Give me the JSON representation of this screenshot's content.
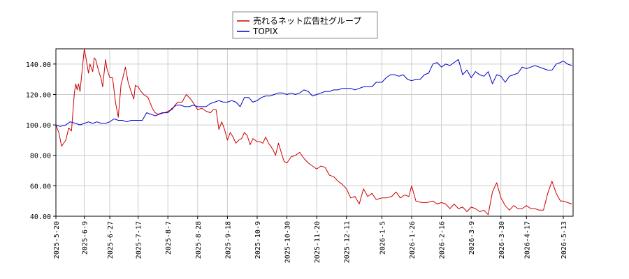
{
  "chart_data": {
    "type": "line",
    "legend_placement": "top-center",
    "grid": true,
    "ylim": [
      40,
      150
    ],
    "yticks": [
      "40.00",
      "60.00",
      "80.00",
      "100.00",
      "120.00",
      "140.00"
    ],
    "xticks": [
      "2025-5-20",
      "2025-6-9",
      "2025-6-27",
      "2025-7-17",
      "2025-8-7",
      "2025-8-28",
      "2025-9-18",
      "2025-10-9",
      "2025-10-30",
      "2025-11-20",
      "2025-12-11",
      "2026-1-5",
      "2026-1-26",
      "2026-2-16",
      "2026-3-9",
      "2026-3-30",
      "2026-4-17",
      "2026-5-13"
    ],
    "series": [
      {
        "name": "売れるネット広告社グループ",
        "color": "#cc0000",
        "points": [
          [
            "2025-5-20",
            100
          ],
          [
            "2025-5-22",
            95
          ],
          [
            "2025-5-24",
            86
          ],
          [
            "2025-5-27",
            90
          ],
          [
            "2025-5-29",
            98
          ],
          [
            "2025-5-31",
            96
          ],
          [
            "2025-6-2",
            121
          ],
          [
            "2025-6-3",
            127
          ],
          [
            "2025-6-4",
            123
          ],
          [
            "2025-6-5",
            127
          ],
          [
            "2025-6-6",
            122
          ],
          [
            "2025-6-9",
            150
          ],
          [
            "2025-6-10",
            145
          ],
          [
            "2025-6-12",
            134
          ],
          [
            "2025-6-13",
            140
          ],
          [
            "2025-6-15",
            135
          ],
          [
            "2025-6-16",
            144
          ],
          [
            "2025-6-17",
            143
          ],
          [
            "2025-6-19",
            136
          ],
          [
            "2025-6-21",
            130
          ],
          [
            "2025-6-22",
            125
          ],
          [
            "2025-6-24",
            143
          ],
          [
            "2025-6-25",
            137
          ],
          [
            "2025-6-27",
            131
          ],
          [
            "2025-6-29",
            131
          ],
          [
            "2025-7-1",
            115
          ],
          [
            "2025-7-3",
            105
          ],
          [
            "2025-7-5",
            127
          ],
          [
            "2025-7-6",
            130
          ],
          [
            "2025-7-8",
            138
          ],
          [
            "2025-7-10",
            128
          ],
          [
            "2025-7-12",
            122
          ],
          [
            "2025-7-14",
            117
          ],
          [
            "2025-7-15",
            126
          ],
          [
            "2025-7-17",
            125
          ],
          [
            "2025-7-19",
            122
          ],
          [
            "2025-7-21",
            120
          ],
          [
            "2025-7-24",
            118
          ],
          [
            "2025-7-27",
            111
          ],
          [
            "2025-7-29",
            108
          ],
          [
            "2025-7-31",
            107
          ],
          [
            "2025-8-3",
            108
          ],
          [
            "2025-8-5",
            108
          ],
          [
            "2025-8-7",
            109
          ],
          [
            "2025-8-10",
            110
          ],
          [
            "2025-8-12",
            113
          ],
          [
            "2025-8-14",
            115
          ],
          [
            "2025-8-17",
            115
          ],
          [
            "2025-8-20",
            120
          ],
          [
            "2025-8-23",
            117
          ],
          [
            "2025-8-26",
            113
          ],
          [
            "2025-8-28",
            110
          ],
          [
            "2025-8-31",
            111
          ],
          [
            "2025-9-3",
            109
          ],
          [
            "2025-9-6",
            108
          ],
          [
            "2025-9-8",
            110
          ],
          [
            "2025-9-10",
            110
          ],
          [
            "2025-9-12",
            97
          ],
          [
            "2025-9-14",
            102
          ],
          [
            "2025-9-16",
            97
          ],
          [
            "2025-9-18",
            90
          ],
          [
            "2025-9-20",
            95
          ],
          [
            "2025-9-22",
            92
          ],
          [
            "2025-9-24",
            88
          ],
          [
            "2025-9-26",
            90
          ],
          [
            "2025-9-28",
            91
          ],
          [
            "2025-9-30",
            95
          ],
          [
            "2025-10-2",
            93
          ],
          [
            "2025-10-4",
            87
          ],
          [
            "2025-10-6",
            91
          ],
          [
            "2025-10-9",
            89
          ],
          [
            "2025-10-11",
            89
          ],
          [
            "2025-10-13",
            88
          ],
          [
            "2025-10-15",
            92
          ],
          [
            "2025-10-17",
            88
          ],
          [
            "2025-10-20",
            84
          ],
          [
            "2025-10-22",
            80
          ],
          [
            "2025-10-24",
            88
          ],
          [
            "2025-10-26",
            82
          ],
          [
            "2025-10-28",
            76
          ],
          [
            "2025-10-30",
            75
          ],
          [
            "2025-11-2",
            79
          ],
          [
            "2025-11-5",
            80
          ],
          [
            "2025-11-8",
            82
          ],
          [
            "2025-11-11",
            78
          ],
          [
            "2025-11-14",
            75
          ],
          [
            "2025-11-17",
            73
          ],
          [
            "2025-11-20",
            71
          ],
          [
            "2025-11-23",
            73
          ],
          [
            "2025-11-26",
            72
          ],
          [
            "2025-11-29",
            67
          ],
          [
            "2025-12-2",
            66
          ],
          [
            "2025-12-5",
            63
          ],
          [
            "2025-12-8",
            61
          ],
          [
            "2025-12-11",
            58
          ],
          [
            "2025-12-14",
            52
          ],
          [
            "2025-12-17",
            53
          ],
          [
            "2025-12-20",
            48
          ],
          [
            "2025-12-23",
            58
          ],
          [
            "2025-12-26",
            53
          ],
          [
            "2025-12-29",
            55
          ],
          [
            "2026-1-1",
            51
          ],
          [
            "2026-1-5",
            52
          ],
          [
            "2026-1-8",
            52
          ],
          [
            "2026-1-12",
            53
          ],
          [
            "2026-1-15",
            56
          ],
          [
            "2026-1-18",
            52
          ],
          [
            "2026-1-21",
            54
          ],
          [
            "2026-1-24",
            53
          ],
          [
            "2026-1-26",
            60
          ],
          [
            "2026-1-29",
            50
          ],
          [
            "2026-2-2",
            49
          ],
          [
            "2026-2-6",
            49
          ],
          [
            "2026-2-10",
            50
          ],
          [
            "2026-2-13",
            48
          ],
          [
            "2026-2-16",
            49
          ],
          [
            "2026-2-19",
            48
          ],
          [
            "2026-2-22",
            45
          ],
          [
            "2026-2-25",
            48
          ],
          [
            "2026-2-28",
            45
          ],
          [
            "2026-3-3",
            46
          ],
          [
            "2026-3-6",
            43
          ],
          [
            "2026-3-9",
            46
          ],
          [
            "2026-3-12",
            45
          ],
          [
            "2026-3-15",
            43
          ],
          [
            "2026-3-18",
            44
          ],
          [
            "2026-3-21",
            41
          ],
          [
            "2026-3-24",
            56
          ],
          [
            "2026-3-27",
            62
          ],
          [
            "2026-3-30",
            52
          ],
          [
            "2026-4-2",
            47
          ],
          [
            "2026-4-5",
            44
          ],
          [
            "2026-4-8",
            47
          ],
          [
            "2026-4-11",
            45
          ],
          [
            "2026-4-14",
            45
          ],
          [
            "2026-4-17",
            47
          ],
          [
            "2026-4-20",
            45
          ],
          [
            "2026-4-23",
            45
          ],
          [
            "2026-4-26",
            44
          ],
          [
            "2026-4-29",
            44
          ],
          [
            "2026-5-2",
            55
          ],
          [
            "2026-5-5",
            63
          ],
          [
            "2026-5-8",
            55
          ],
          [
            "2026-5-11",
            50
          ],
          [
            "2026-5-13",
            50
          ],
          [
            "2026-5-16",
            49
          ],
          [
            "2026-5-19",
            48
          ]
        ]
      },
      {
        "name": "TOPIX",
        "color": "#0000cc",
        "points": [
          [
            "2025-5-20",
            100
          ],
          [
            "2025-5-23",
            99
          ],
          [
            "2025-5-27",
            100
          ],
          [
            "2025-5-30",
            102
          ],
          [
            "2025-6-3",
            101
          ],
          [
            "2025-6-6",
            100
          ],
          [
            "2025-6-9",
            101
          ],
          [
            "2025-6-12",
            102
          ],
          [
            "2025-6-15",
            101
          ],
          [
            "2025-6-18",
            102
          ],
          [
            "2025-6-21",
            101
          ],
          [
            "2025-6-24",
            101
          ],
          [
            "2025-6-27",
            102
          ],
          [
            "2025-6-30",
            104
          ],
          [
            "2025-7-3",
            103
          ],
          [
            "2025-7-6",
            103
          ],
          [
            "2025-7-9",
            102
          ],
          [
            "2025-7-12",
            103
          ],
          [
            "2025-7-15",
            103
          ],
          [
            "2025-7-17",
            103
          ],
          [
            "2025-7-20",
            103
          ],
          [
            "2025-7-23",
            108
          ],
          [
            "2025-7-26",
            107
          ],
          [
            "2025-7-29",
            106
          ],
          [
            "2025-8-1",
            107
          ],
          [
            "2025-8-4",
            108
          ],
          [
            "2025-8-7",
            108
          ],
          [
            "2025-8-10",
            111
          ],
          [
            "2025-8-13",
            113
          ],
          [
            "2025-8-16",
            113
          ],
          [
            "2025-8-19",
            112
          ],
          [
            "2025-8-22",
            112
          ],
          [
            "2025-8-25",
            113
          ],
          [
            "2025-8-28",
            112
          ],
          [
            "2025-8-31",
            112
          ],
          [
            "2025-9-3",
            112
          ],
          [
            "2025-9-6",
            114
          ],
          [
            "2025-9-9",
            115
          ],
          [
            "2025-9-12",
            116
          ],
          [
            "2025-9-15",
            115
          ],
          [
            "2025-9-18",
            115
          ],
          [
            "2025-9-21",
            116
          ],
          [
            "2025-9-24",
            115
          ],
          [
            "2025-9-27",
            112
          ],
          [
            "2025-9-30",
            118
          ],
          [
            "2025-10-3",
            118
          ],
          [
            "2025-10-6",
            115
          ],
          [
            "2025-10-9",
            116
          ],
          [
            "2025-10-12",
            118
          ],
          [
            "2025-10-15",
            119
          ],
          [
            "2025-10-18",
            119
          ],
          [
            "2025-10-21",
            120
          ],
          [
            "2025-10-24",
            121
          ],
          [
            "2025-10-27",
            121
          ],
          [
            "2025-10-30",
            120
          ],
          [
            "2025-11-2",
            121
          ],
          [
            "2025-11-5",
            120
          ],
          [
            "2025-11-8",
            121
          ],
          [
            "2025-11-11",
            123
          ],
          [
            "2025-11-14",
            122
          ],
          [
            "2025-11-17",
            119
          ],
          [
            "2025-11-20",
            120
          ],
          [
            "2025-11-23",
            121
          ],
          [
            "2025-11-26",
            122
          ],
          [
            "2025-11-29",
            122
          ],
          [
            "2025-12-2",
            123
          ],
          [
            "2025-12-5",
            123
          ],
          [
            "2025-12-8",
            124
          ],
          [
            "2025-12-11",
            124
          ],
          [
            "2025-12-14",
            124
          ],
          [
            "2025-12-17",
            123
          ],
          [
            "2025-12-20",
            124
          ],
          [
            "2025-12-23",
            125
          ],
          [
            "2025-12-26",
            125
          ],
          [
            "2025-12-29",
            125
          ],
          [
            "2026-1-1",
            128
          ],
          [
            "2026-1-5",
            128
          ],
          [
            "2026-1-8",
            131
          ],
          [
            "2026-1-11",
            133
          ],
          [
            "2026-1-14",
            133
          ],
          [
            "2026-1-17",
            132
          ],
          [
            "2026-1-20",
            133
          ],
          [
            "2026-1-23",
            130
          ],
          [
            "2026-1-26",
            129
          ],
          [
            "2026-1-29",
            130
          ],
          [
            "2026-2-1",
            130
          ],
          [
            "2026-2-4",
            133
          ],
          [
            "2026-2-7",
            134
          ],
          [
            "2026-2-10",
            140
          ],
          [
            "2026-2-13",
            141
          ],
          [
            "2026-2-16",
            138
          ],
          [
            "2026-2-19",
            140
          ],
          [
            "2026-2-22",
            139
          ],
          [
            "2026-2-25",
            141
          ],
          [
            "2026-2-28",
            143
          ],
          [
            "2026-3-3",
            133
          ],
          [
            "2026-3-6",
            136
          ],
          [
            "2026-3-9",
            131
          ],
          [
            "2026-3-12",
            135
          ],
          [
            "2026-3-15",
            133
          ],
          [
            "2026-3-18",
            132
          ],
          [
            "2026-3-21",
            135
          ],
          [
            "2026-3-24",
            127
          ],
          [
            "2026-3-27",
            133
          ],
          [
            "2026-3-30",
            132
          ],
          [
            "2026-4-2",
            128
          ],
          [
            "2026-4-5",
            132
          ],
          [
            "2026-4-8",
            133
          ],
          [
            "2026-4-11",
            134
          ],
          [
            "2026-4-14",
            138
          ],
          [
            "2026-4-17",
            137
          ],
          [
            "2026-4-20",
            138
          ],
          [
            "2026-4-23",
            139
          ],
          [
            "2026-4-26",
            138
          ],
          [
            "2026-4-29",
            137
          ],
          [
            "2026-5-2",
            136
          ],
          [
            "2026-5-5",
            136
          ],
          [
            "2026-5-8",
            140
          ],
          [
            "2026-5-11",
            141
          ],
          [
            "2026-5-13",
            142
          ],
          [
            "2026-5-16",
            140
          ],
          [
            "2026-5-19",
            139
          ]
        ]
      }
    ]
  }
}
